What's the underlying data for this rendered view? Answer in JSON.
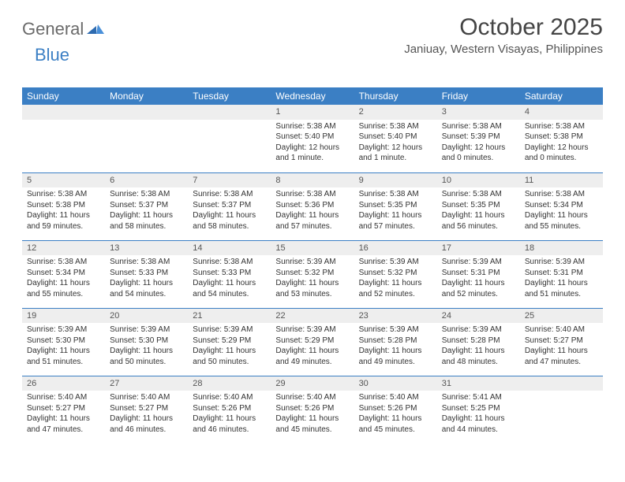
{
  "logo": {
    "general": "General",
    "blue": "Blue"
  },
  "title": "October 2025",
  "location": "Janiuay, Western Visayas, Philippines",
  "colors": {
    "header_bg": "#3b7fc4",
    "header_text": "#ffffff",
    "daynum_bg": "#eeeeee",
    "row_border": "#3b7fc4",
    "text": "#333333",
    "logo_gray": "#6a6a6a"
  },
  "daysOfWeek": [
    "Sunday",
    "Monday",
    "Tuesday",
    "Wednesday",
    "Thursday",
    "Friday",
    "Saturday"
  ],
  "weeks": [
    [
      {
        "n": "",
        "sunrise": "",
        "sunset": "",
        "daylight": "",
        "empty": true
      },
      {
        "n": "",
        "sunrise": "",
        "sunset": "",
        "daylight": "",
        "empty": true
      },
      {
        "n": "",
        "sunrise": "",
        "sunset": "",
        "daylight": "",
        "empty": true
      },
      {
        "n": "1",
        "sunrise": "Sunrise: 5:38 AM",
        "sunset": "Sunset: 5:40 PM",
        "daylight": "Daylight: 12 hours and 1 minute."
      },
      {
        "n": "2",
        "sunrise": "Sunrise: 5:38 AM",
        "sunset": "Sunset: 5:40 PM",
        "daylight": "Daylight: 12 hours and 1 minute."
      },
      {
        "n": "3",
        "sunrise": "Sunrise: 5:38 AM",
        "sunset": "Sunset: 5:39 PM",
        "daylight": "Daylight: 12 hours and 0 minutes."
      },
      {
        "n": "4",
        "sunrise": "Sunrise: 5:38 AM",
        "sunset": "Sunset: 5:38 PM",
        "daylight": "Daylight: 12 hours and 0 minutes."
      }
    ],
    [
      {
        "n": "5",
        "sunrise": "Sunrise: 5:38 AM",
        "sunset": "Sunset: 5:38 PM",
        "daylight": "Daylight: 11 hours and 59 minutes."
      },
      {
        "n": "6",
        "sunrise": "Sunrise: 5:38 AM",
        "sunset": "Sunset: 5:37 PM",
        "daylight": "Daylight: 11 hours and 58 minutes."
      },
      {
        "n": "7",
        "sunrise": "Sunrise: 5:38 AM",
        "sunset": "Sunset: 5:37 PM",
        "daylight": "Daylight: 11 hours and 58 minutes."
      },
      {
        "n": "8",
        "sunrise": "Sunrise: 5:38 AM",
        "sunset": "Sunset: 5:36 PM",
        "daylight": "Daylight: 11 hours and 57 minutes."
      },
      {
        "n": "9",
        "sunrise": "Sunrise: 5:38 AM",
        "sunset": "Sunset: 5:35 PM",
        "daylight": "Daylight: 11 hours and 57 minutes."
      },
      {
        "n": "10",
        "sunrise": "Sunrise: 5:38 AM",
        "sunset": "Sunset: 5:35 PM",
        "daylight": "Daylight: 11 hours and 56 minutes."
      },
      {
        "n": "11",
        "sunrise": "Sunrise: 5:38 AM",
        "sunset": "Sunset: 5:34 PM",
        "daylight": "Daylight: 11 hours and 55 minutes."
      }
    ],
    [
      {
        "n": "12",
        "sunrise": "Sunrise: 5:38 AM",
        "sunset": "Sunset: 5:34 PM",
        "daylight": "Daylight: 11 hours and 55 minutes."
      },
      {
        "n": "13",
        "sunrise": "Sunrise: 5:38 AM",
        "sunset": "Sunset: 5:33 PM",
        "daylight": "Daylight: 11 hours and 54 minutes."
      },
      {
        "n": "14",
        "sunrise": "Sunrise: 5:38 AM",
        "sunset": "Sunset: 5:33 PM",
        "daylight": "Daylight: 11 hours and 54 minutes."
      },
      {
        "n": "15",
        "sunrise": "Sunrise: 5:39 AM",
        "sunset": "Sunset: 5:32 PM",
        "daylight": "Daylight: 11 hours and 53 minutes."
      },
      {
        "n": "16",
        "sunrise": "Sunrise: 5:39 AM",
        "sunset": "Sunset: 5:32 PM",
        "daylight": "Daylight: 11 hours and 52 minutes."
      },
      {
        "n": "17",
        "sunrise": "Sunrise: 5:39 AM",
        "sunset": "Sunset: 5:31 PM",
        "daylight": "Daylight: 11 hours and 52 minutes."
      },
      {
        "n": "18",
        "sunrise": "Sunrise: 5:39 AM",
        "sunset": "Sunset: 5:31 PM",
        "daylight": "Daylight: 11 hours and 51 minutes."
      }
    ],
    [
      {
        "n": "19",
        "sunrise": "Sunrise: 5:39 AM",
        "sunset": "Sunset: 5:30 PM",
        "daylight": "Daylight: 11 hours and 51 minutes."
      },
      {
        "n": "20",
        "sunrise": "Sunrise: 5:39 AM",
        "sunset": "Sunset: 5:30 PM",
        "daylight": "Daylight: 11 hours and 50 minutes."
      },
      {
        "n": "21",
        "sunrise": "Sunrise: 5:39 AM",
        "sunset": "Sunset: 5:29 PM",
        "daylight": "Daylight: 11 hours and 50 minutes."
      },
      {
        "n": "22",
        "sunrise": "Sunrise: 5:39 AM",
        "sunset": "Sunset: 5:29 PM",
        "daylight": "Daylight: 11 hours and 49 minutes."
      },
      {
        "n": "23",
        "sunrise": "Sunrise: 5:39 AM",
        "sunset": "Sunset: 5:28 PM",
        "daylight": "Daylight: 11 hours and 49 minutes."
      },
      {
        "n": "24",
        "sunrise": "Sunrise: 5:39 AM",
        "sunset": "Sunset: 5:28 PM",
        "daylight": "Daylight: 11 hours and 48 minutes."
      },
      {
        "n": "25",
        "sunrise": "Sunrise: 5:40 AM",
        "sunset": "Sunset: 5:27 PM",
        "daylight": "Daylight: 11 hours and 47 minutes."
      }
    ],
    [
      {
        "n": "26",
        "sunrise": "Sunrise: 5:40 AM",
        "sunset": "Sunset: 5:27 PM",
        "daylight": "Daylight: 11 hours and 47 minutes."
      },
      {
        "n": "27",
        "sunrise": "Sunrise: 5:40 AM",
        "sunset": "Sunset: 5:27 PM",
        "daylight": "Daylight: 11 hours and 46 minutes."
      },
      {
        "n": "28",
        "sunrise": "Sunrise: 5:40 AM",
        "sunset": "Sunset: 5:26 PM",
        "daylight": "Daylight: 11 hours and 46 minutes."
      },
      {
        "n": "29",
        "sunrise": "Sunrise: 5:40 AM",
        "sunset": "Sunset: 5:26 PM",
        "daylight": "Daylight: 11 hours and 45 minutes."
      },
      {
        "n": "30",
        "sunrise": "Sunrise: 5:40 AM",
        "sunset": "Sunset: 5:26 PM",
        "daylight": "Daylight: 11 hours and 45 minutes."
      },
      {
        "n": "31",
        "sunrise": "Sunrise: 5:41 AM",
        "sunset": "Sunset: 5:25 PM",
        "daylight": "Daylight: 11 hours and 44 minutes."
      },
      {
        "n": "",
        "sunrise": "",
        "sunset": "",
        "daylight": "",
        "empty": true
      }
    ]
  ]
}
